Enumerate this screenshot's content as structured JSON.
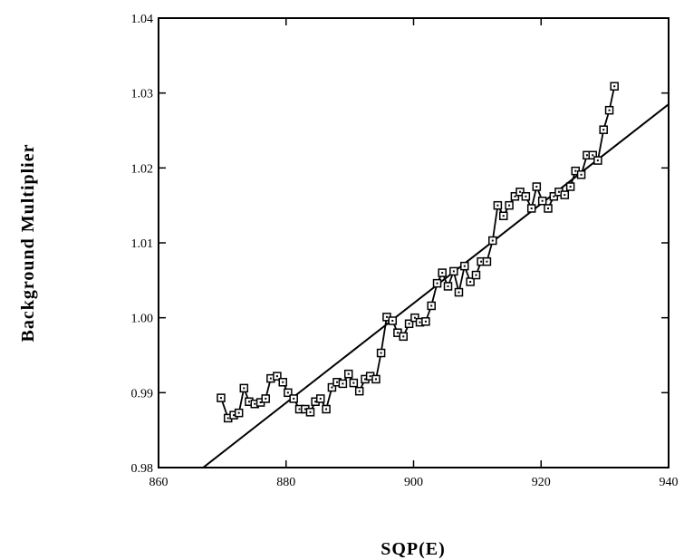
{
  "chart_data": {
    "type": "line",
    "title": "",
    "xlabel": "SQP(E)",
    "ylabel": "Background  Multiplier",
    "xlim": [
      860,
      940
    ],
    "ylim": [
      0.98,
      1.04
    ],
    "xticks": [
      860,
      880,
      900,
      920,
      940
    ],
    "yticks": [
      0.98,
      0.99,
      1.0,
      1.01,
      1.02,
      1.03,
      1.04
    ],
    "xtick_labels": [
      "860",
      "880",
      "900",
      "920",
      "940"
    ],
    "ytick_labels": [
      "0.98",
      "0.99",
      "1.00",
      "1.01",
      "1.02",
      "1.03",
      "1.04"
    ],
    "grid": false,
    "series": [
      {
        "marker": "square-dot",
        "line": "connected",
        "x": [
          869.8,
          870.9,
          871.8,
          872.6,
          873.4,
          874.2,
          875.1,
          876.0,
          876.8,
          877.6,
          878.6,
          879.5,
          880.3,
          881.2,
          882.1,
          883.0,
          883.8,
          884.6,
          885.4,
          886.3,
          887.2,
          888.0,
          888.9,
          889.8,
          890.6,
          891.5,
          892.4,
          893.2,
          894.1,
          894.9,
          895.8,
          896.7,
          897.5,
          898.4,
          899.3,
          900.2,
          901.0,
          901.9,
          902.8,
          903.7,
          904.5,
          905.4,
          906.3,
          907.1,
          908.0,
          908.9,
          909.8,
          910.6,
          911.5,
          912.4,
          913.2,
          914.1,
          915.0,
          915.9,
          916.7,
          917.6,
          918.5,
          919.3,
          920.2,
          921.1,
          922.0,
          922.8,
          923.7,
          924.6,
          925.4,
          926.3,
          927.2,
          928.1,
          928.9,
          929.8,
          930.7,
          931.5
        ],
        "y": [
          0.9893,
          0.9866,
          0.987,
          0.9873,
          0.9906,
          0.9888,
          0.9885,
          0.9887,
          0.9892,
          0.9919,
          0.9922,
          0.9914,
          0.99,
          0.9892,
          0.9878,
          0.9878,
          0.9874,
          0.9888,
          0.9892,
          0.9878,
          0.9907,
          0.9914,
          0.9912,
          0.9925,
          0.9913,
          0.9902,
          0.9918,
          0.9922,
          0.9918,
          0.9953,
          1.0001,
          0.9996,
          0.998,
          0.9975,
          0.9992,
          1.0,
          0.9994,
          0.9995,
          1.0016,
          1.0046,
          1.006,
          1.0042,
          1.0062,
          1.0034,
          1.0069,
          1.0048,
          1.0057,
          1.0075,
          1.0075,
          1.0103,
          1.015,
          1.0136,
          1.015,
          1.0162,
          1.0168,
          1.0162,
          1.0146,
          1.0175,
          1.0156,
          1.0146,
          1.0162,
          1.0168,
          1.0164,
          1.0175,
          1.0196,
          1.0191,
          1.0217,
          1.0217,
          1.021,
          1.0251,
          1.0277,
          1.0309
        ]
      }
    ],
    "fit_line": {
      "x": [
        867.0,
        940.0
      ],
      "y": [
        0.98,
        1.0285
      ]
    }
  }
}
